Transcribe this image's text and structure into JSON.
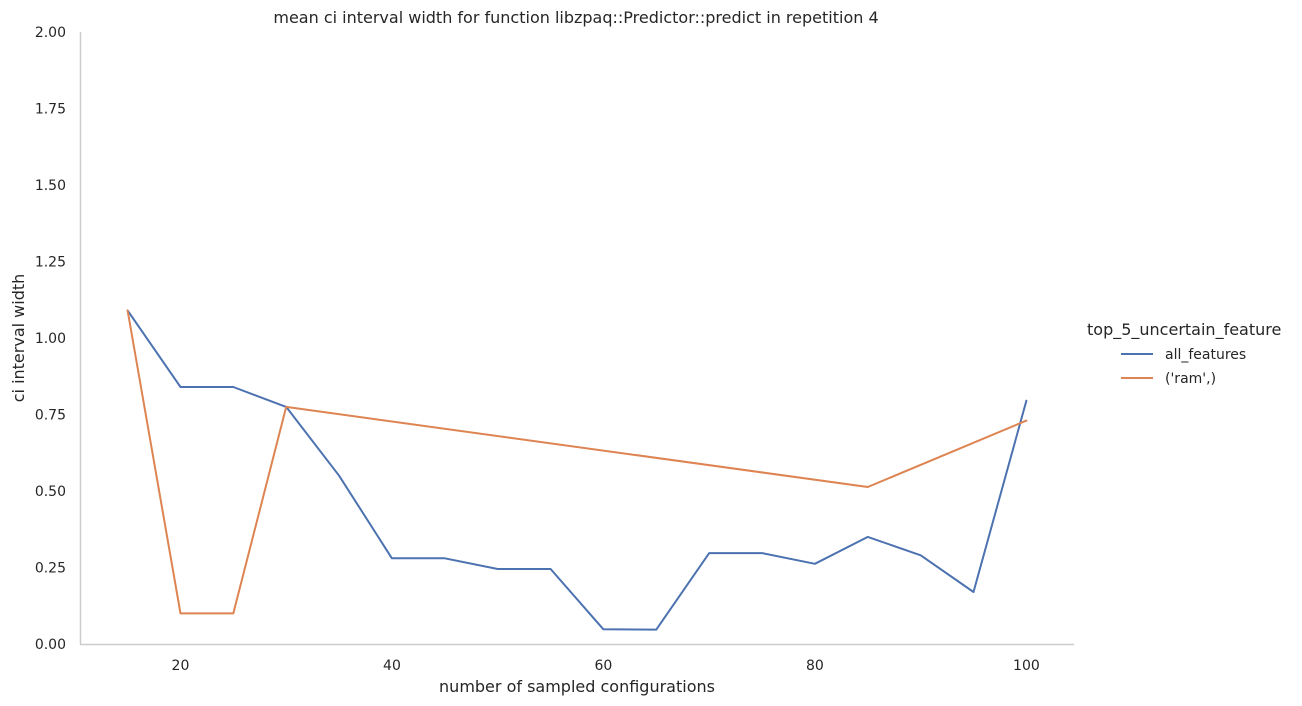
{
  "chart_data": {
    "type": "line",
    "title": "mean ci interval width for function libzpaq::Predictor::predict in repetition 4",
    "xlabel": "number of sampled configurations",
    "ylabel": "ci interval width",
    "xlim": [
      10.5,
      104.5
    ],
    "ylim": [
      0,
      2
    ],
    "xticks": [
      20,
      40,
      60,
      80,
      100
    ],
    "yticks": [
      "0.00",
      "0.25",
      "0.50",
      "0.75",
      "1.00",
      "1.25",
      "1.50",
      "1.75",
      "2.00"
    ],
    "grid": false,
    "legend": {
      "title": "top_5_uncertain_feature",
      "placement": "right"
    },
    "series": [
      {
        "name": "all_features",
        "color": "#4c72b0",
        "x": [
          15,
          20,
          25,
          30,
          35,
          40,
          45,
          50,
          55,
          60,
          65,
          70,
          75,
          80,
          85,
          90,
          95,
          100
        ],
        "y": [
          1.09,
          0.84,
          0.84,
          0.775,
          0.55,
          0.28,
          0.28,
          0.245,
          0.245,
          0.048,
          0.047,
          0.297,
          0.297,
          0.262,
          0.35,
          0.29,
          0.17,
          0.795
        ]
      },
      {
        "name": "('ram',)",
        "color": "#dd8452",
        "x": [
          15,
          20,
          25,
          30,
          85,
          100
        ],
        "y": [
          1.09,
          0.1,
          0.1,
          0.775,
          0.513,
          0.73
        ]
      }
    ]
  }
}
